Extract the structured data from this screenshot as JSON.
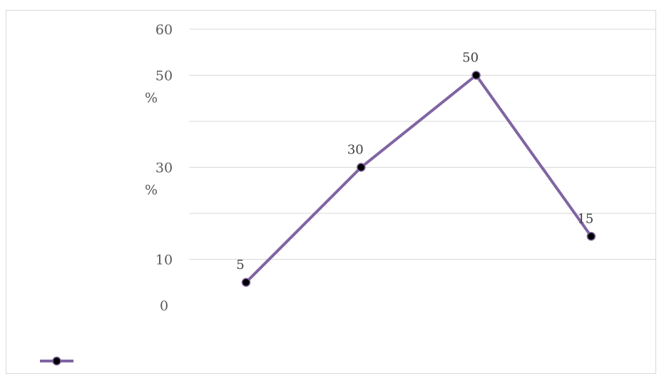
{
  "chart_data": {
    "type": "line",
    "categories": [
      "",
      "",
      "",
      ""
    ],
    "series": [
      {
        "values": [
          5,
          30,
          50,
          15
        ],
        "color": "#8064a2",
        "marker_color": "#000000"
      }
    ],
    "data_labels": [
      "5",
      "30",
      "50",
      "15"
    ],
    "y_ticks": [
      {
        "value": 0,
        "label": "0",
        "label_line2": ""
      },
      {
        "value": 10,
        "label": "10",
        "label_line2": ""
      },
      {
        "value": 30,
        "label": "30",
        "label_line2": "%"
      },
      {
        "value": 50,
        "label": "50",
        "label_line2": "%"
      },
      {
        "value": 60,
        "label": "60",
        "label_line2": ""
      }
    ],
    "gridlines": [
      10,
      20,
      30,
      40,
      50,
      60
    ],
    "ylim": [
      0,
      60
    ],
    "grid": true,
    "legend": {
      "position": "bottom-left",
      "entries": [
        ""
      ]
    },
    "title": "",
    "xlabel": "",
    "ylabel": ""
  }
}
